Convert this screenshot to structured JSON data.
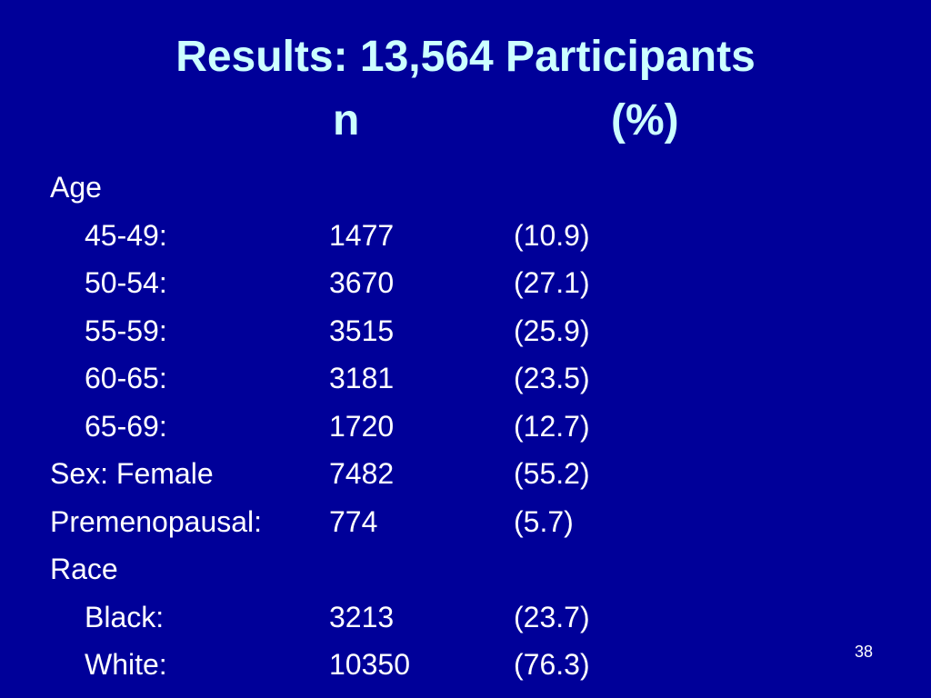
{
  "slide": {
    "title": "Results: 13,564 Participants",
    "subtitle_n": "n",
    "subtitle_pct": "(%)",
    "page_number": "38",
    "colors": {
      "background": "#000099",
      "title": "#ccffff",
      "body_text": "#ffffff"
    }
  },
  "rows": [
    {
      "label": "Age",
      "n": "",
      "pct": "",
      "indent": false
    },
    {
      "label": "45-49:",
      "n": "1477",
      "pct": "(10.9)",
      "indent": true
    },
    {
      "label": "50-54:",
      "n": "3670",
      "pct": "(27.1)",
      "indent": true
    },
    {
      "label": "55-59:",
      "n": "3515",
      "pct": "(25.9)",
      "indent": true
    },
    {
      "label": "60-65:",
      "n": "3181",
      "pct": "(23.5)",
      "indent": true
    },
    {
      "label": "65-69:",
      "n": "1720",
      "pct": "(12.7)",
      "indent": true
    },
    {
      "label": "Sex: Female",
      "n": "7482",
      "pct": "(55.2)",
      "indent": false
    },
    {
      "label": "Premenopausal:",
      "n": "774",
      "pct": "(5.7)",
      "indent": false
    },
    {
      "label": "Race",
      "n": "",
      "pct": "",
      "indent": false
    },
    {
      "label": "Black:",
      "n": "3213",
      "pct": "(23.7)",
      "indent": true
    },
    {
      "label": "White:",
      "n": "10350",
      "pct": "(76.3)",
      "indent": true
    }
  ]
}
